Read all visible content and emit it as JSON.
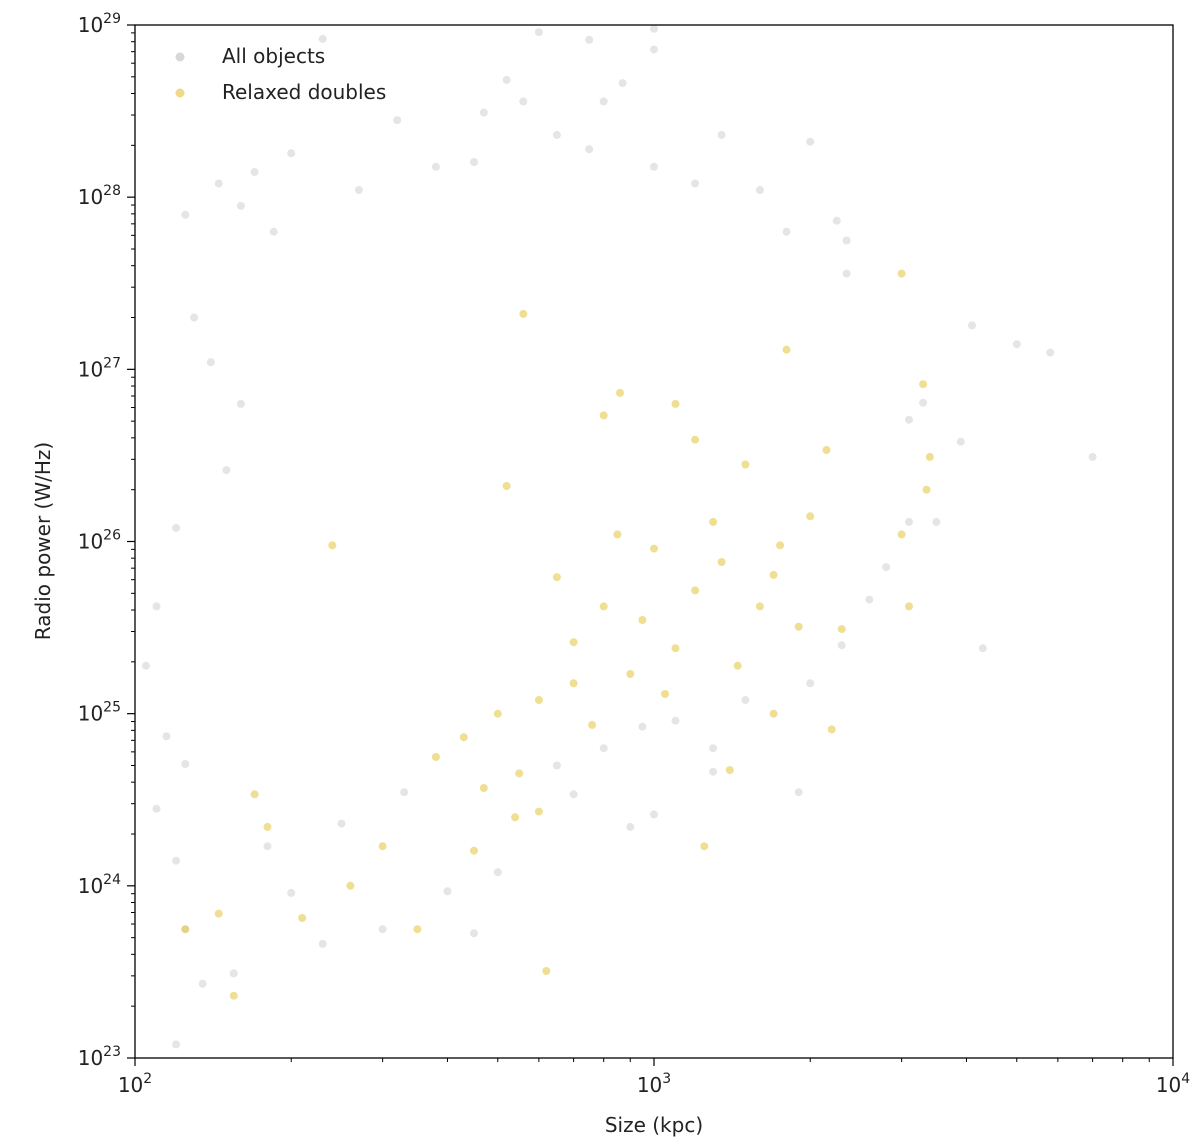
{
  "chart_data": {
    "type": "scatter",
    "xlabel": "Size (kpc)",
    "ylabel": "Radio power (W/Hz)",
    "xscale": "log",
    "yscale": "log",
    "xlim": [
      100,
      10000
    ],
    "ylim": [
      1e+23,
      1e+29
    ],
    "grid": false,
    "legend_position": "top-left",
    "x_ticks": [
      {
        "base": "10",
        "exp": "2",
        "value": 100
      },
      {
        "base": "10",
        "exp": "3",
        "value": 1000
      },
      {
        "base": "10",
        "exp": "4",
        "value": 10000
      }
    ],
    "y_ticks": [
      {
        "base": "10",
        "exp": "23",
        "value": 1e+23
      },
      {
        "base": "10",
        "exp": "24",
        "value": 1e+24
      },
      {
        "base": "10",
        "exp": "25",
        "value": 1e+25
      },
      {
        "base": "10",
        "exp": "26",
        "value": 1e+26
      },
      {
        "base": "10",
        "exp": "27",
        "value": 1e+27
      },
      {
        "base": "10",
        "exp": "28",
        "value": 1e+28
      },
      {
        "base": "10",
        "exp": "29",
        "value": 1e+29
      }
    ],
    "series": [
      {
        "name": "All objects",
        "color": "#bdbdbd",
        "opacity": 0.4,
        "points": [
          [
            600,
            9.1e+28
          ],
          [
            1000,
            9.5e+28
          ],
          [
            750,
            8.2e+28
          ],
          [
            1000,
            7.2e+28
          ],
          [
            230,
            8.3e+28
          ],
          [
            520,
            4.8e+28
          ],
          [
            560,
            3.6e+28
          ],
          [
            650,
            2.3e+28
          ],
          [
            800,
            3.6e+28
          ],
          [
            870,
            4.6e+28
          ],
          [
            1350,
            2.3e+28
          ],
          [
            2000,
            2.1e+28
          ],
          [
            470,
            3.1e+28
          ],
          [
            320,
            2.8e+28
          ],
          [
            200,
            1.8e+28
          ],
          [
            750,
            1.9e+28
          ],
          [
            1000,
            1.5e+28
          ],
          [
            1200,
            1.2e+28
          ],
          [
            1600,
            1.1e+28
          ],
          [
            450,
            1.6e+28
          ],
          [
            380,
            1.5e+28
          ],
          [
            170,
            1.4e+28
          ],
          [
            145,
            1.2e+28
          ],
          [
            270,
            1.1e+28
          ],
          [
            125,
            7.9e+27
          ],
          [
            160,
            8.9e+27
          ],
          [
            185,
            6.3e+27
          ],
          [
            1800,
            6.3e+27
          ],
          [
            2250,
            7.3e+27
          ],
          [
            2350,
            5.6e+27
          ],
          [
            2350,
            3.6e+27
          ],
          [
            4100,
            1.8e+27
          ],
          [
            5000,
            1.4e+27
          ],
          [
            5800,
            1.25e+27
          ],
          [
            7000,
            3.1e+26
          ],
          [
            4300,
            2.4e+25
          ],
          [
            3500,
            1.3e+26
          ],
          [
            3300,
            6.4e+26
          ],
          [
            3900,
            3.8e+26
          ],
          [
            3100,
            5.1e+26
          ],
          [
            130,
            2e+27
          ],
          [
            140,
            1.1e+27
          ],
          [
            160,
            6.3e+26
          ],
          [
            150,
            2.6e+26
          ],
          [
            120,
            1.2e+26
          ],
          [
            110,
            4.2e+25
          ],
          [
            105,
            1.9e+25
          ],
          [
            115,
            7.4e+24
          ],
          [
            125,
            5.1e+24
          ],
          [
            110,
            2.8e+24
          ],
          [
            120,
            1.4e+24
          ],
          [
            125,
            5.6e+23
          ],
          [
            135,
            2.7e+23
          ],
          [
            120,
            1.2e+23
          ],
          [
            155,
            3.1e+23
          ],
          [
            300,
            5.6e+23
          ],
          [
            230,
            4.6e+23
          ],
          [
            450,
            5.3e+23
          ],
          [
            1300,
            4.6e+24
          ],
          [
            1900,
            3.5e+24
          ],
          [
            1300,
            6.3e+24
          ],
          [
            900,
            2.2e+24
          ],
          [
            1000,
            2.6e+24
          ],
          [
            700,
            3.4e+24
          ],
          [
            500,
            1.2e+24
          ],
          [
            400,
            9.3e+23
          ],
          [
            200,
            9.1e+23
          ],
          [
            180,
            1.7e+24
          ],
          [
            250,
            2.3e+24
          ],
          [
            330,
            3.5e+24
          ],
          [
            650,
            5e+24
          ],
          [
            800,
            6.3e+24
          ],
          [
            950,
            8.4e+24
          ],
          [
            1100,
            9.1e+24
          ],
          [
            1500,
            1.2e+25
          ],
          [
            2000,
            1.5e+25
          ],
          [
            2300,
            2.5e+25
          ],
          [
            2600,
            4.6e+25
          ],
          [
            2800,
            7.1e+25
          ],
          [
            3100,
            1.3e+26
          ]
        ]
      },
      {
        "name": "Relaxed doubles",
        "color": "#e3c33a",
        "opacity": 0.55,
        "points": [
          [
            3000,
            3.6e+27
          ],
          [
            1800,
            1.3e+27
          ],
          [
            3300,
            8.2e+26
          ],
          [
            3400,
            3.1e+26
          ],
          [
            3350,
            2e+26
          ],
          [
            2150,
            3.4e+26
          ],
          [
            3000,
            1.1e+26
          ],
          [
            3100,
            4.2e+25
          ],
          [
            2300,
            3.1e+25
          ],
          [
            2200,
            8.1e+24
          ],
          [
            1700,
            1e+25
          ],
          [
            1400,
            4.7e+24
          ],
          [
            1250,
            1.7e+24
          ],
          [
            620,
            3.2e+23
          ],
          [
            350,
            5.6e+23
          ],
          [
            155,
            2.3e+23
          ],
          [
            145,
            6.9e+23
          ],
          [
            125,
            5.6e+23
          ],
          [
            210,
            6.5e+23
          ],
          [
            260,
            1e+24
          ],
          [
            180,
            2.2e+24
          ],
          [
            170,
            3.4e+24
          ],
          [
            240,
            9.5e+25
          ],
          [
            300,
            1.7e+24
          ],
          [
            450,
            1.6e+24
          ],
          [
            540,
            2.5e+24
          ],
          [
            600,
            2.7e+24
          ],
          [
            560,
            2.1e+27
          ],
          [
            520,
            2.1e+26
          ],
          [
            860,
            7.3e+26
          ],
          [
            800,
            5.4e+26
          ],
          [
            1100,
            6.3e+26
          ],
          [
            1200,
            3.9e+26
          ],
          [
            1500,
            2.8e+26
          ],
          [
            1300,
            1.3e+26
          ],
          [
            1000,
            9.1e+25
          ],
          [
            1700,
            6.4e+25
          ],
          [
            1900,
            3.2e+25
          ],
          [
            1100,
            2.4e+25
          ],
          [
            900,
            1.7e+25
          ],
          [
            700,
            1.5e+25
          ],
          [
            600,
            1.2e+25
          ],
          [
            500,
            1e+25
          ],
          [
            430,
            7.3e+24
          ],
          [
            380,
            5.6e+24
          ],
          [
            470,
            3.7e+24
          ],
          [
            550,
            4.5e+24
          ],
          [
            760,
            8.6e+24
          ],
          [
            1050,
            1.3e+25
          ],
          [
            1450,
            1.9e+25
          ],
          [
            800,
            4.2e+25
          ],
          [
            650,
            6.2e+25
          ],
          [
            1200,
            5.2e+25
          ],
          [
            950,
            3.5e+25
          ],
          [
            700,
            2.6e+25
          ],
          [
            1600,
            4.2e+25
          ],
          [
            2000,
            1.4e+26
          ],
          [
            1750,
            9.5e+25
          ],
          [
            1350,
            7.6e+25
          ],
          [
            850,
            1.1e+26
          ]
        ]
      }
    ]
  }
}
